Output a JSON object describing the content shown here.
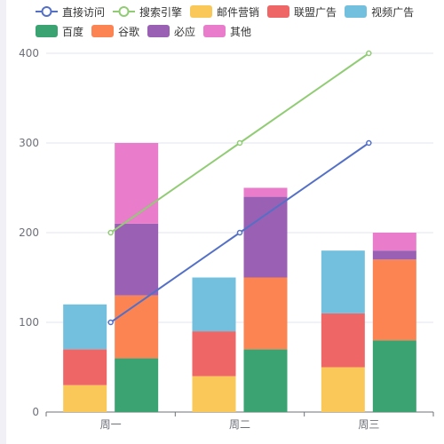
{
  "chart_data": {
    "type": "bar",
    "categories": [
      "周一",
      "周二",
      "周三"
    ],
    "ylim": [
      0,
      400
    ],
    "yticks": [
      0,
      100,
      200,
      300,
      400
    ],
    "grid": true,
    "legend_position": "top",
    "stacks": [
      {
        "stack": "ads",
        "series": [
          {
            "name": "邮件营销",
            "values": [
              30,
              40,
              50
            ],
            "color": "#fac858"
          },
          {
            "name": "联盟广告",
            "values": [
              40,
              50,
              60
            ],
            "color": "#ee6666"
          },
          {
            "name": "视频广告",
            "values": [
              50,
              60,
              70
            ],
            "color": "#73c0de"
          }
        ]
      },
      {
        "stack": "search",
        "series": [
          {
            "name": "百度",
            "values": [
              60,
              70,
              80
            ],
            "color": "#3ba272"
          },
          {
            "name": "谷歌",
            "values": [
              70,
              80,
              90
            ],
            "color": "#fc8452"
          },
          {
            "name": "必应",
            "values": [
              80,
              90,
              10
            ],
            "color": "#9a60b4"
          },
          {
            "name": "其他",
            "values": [
              90,
              10,
              20
            ],
            "color": "#ea7ccc"
          }
        ]
      }
    ],
    "lines": [
      {
        "name": "直接访问",
        "values": [
          100,
          200,
          300
        ],
        "color": "#5470c6"
      },
      {
        "name": "搜索引擎",
        "values": [
          200,
          300,
          400
        ],
        "color": "#91cc75"
      }
    ]
  },
  "legend": {
    "rows": [
      [
        {
          "label": "直接访问",
          "kind": "line",
          "color": "#5470c6"
        },
        {
          "label": "搜索引擎",
          "kind": "line",
          "color": "#91cc75"
        },
        {
          "label": "邮件营销",
          "kind": "rect",
          "color": "#fac858"
        },
        {
          "label": "联盟广告",
          "kind": "rect",
          "color": "#ee6666"
        },
        {
          "label": "视频广告",
          "kind": "rect",
          "color": "#73c0de"
        }
      ],
      [
        {
          "label": "百度",
          "kind": "rect",
          "color": "#3ba272"
        },
        {
          "label": "谷歌",
          "kind": "rect",
          "color": "#fc8452"
        },
        {
          "label": "必应",
          "kind": "rect",
          "color": "#9a60b4"
        },
        {
          "label": "其他",
          "kind": "rect",
          "color": "#ea7ccc"
        }
      ]
    ]
  }
}
